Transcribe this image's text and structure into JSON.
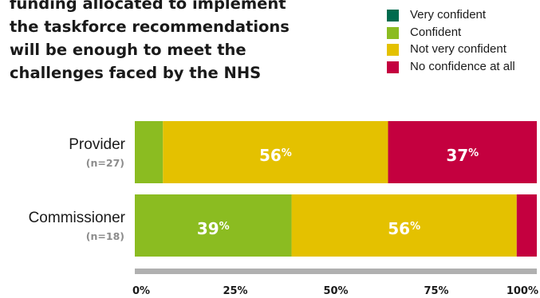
{
  "title_lines": [
    "funding allocated to implement",
    "the taskforce recommendations",
    "will be enough to meet the",
    "challenges faced by the NHS"
  ],
  "colors": {
    "very_confident": "#006b4e",
    "confident": "#8bbc21",
    "not_very_confident": "#e4c100",
    "no_confidence": "#c4003f",
    "axis_line": "#b0b0b0",
    "sublabel": "#8c8c8c"
  },
  "chart_data": {
    "type": "bar",
    "orientation": "horizontal",
    "stacked": true,
    "categories": [
      "Provider",
      "Commissioner"
    ],
    "category_sublabels": [
      "(n=27)",
      "(n=18)"
    ],
    "series": [
      {
        "name": "Very confident",
        "color_key": "very_confident",
        "values": [
          0,
          0
        ],
        "labels": [
          "",
          ""
        ]
      },
      {
        "name": "Confident",
        "color_key": "confident",
        "values": [
          7,
          39
        ],
        "labels": [
          "",
          "39"
        ]
      },
      {
        "name": "Not very confident",
        "color_key": "not_very_confident",
        "values": [
          56,
          56
        ],
        "labels": [
          "56",
          "56"
        ]
      },
      {
        "name": "No confidence at all",
        "color_key": "no_confidence",
        "values": [
          37,
          5
        ],
        "labels": [
          "37",
          ""
        ]
      }
    ],
    "percent_sign": "%",
    "xlim": [
      0,
      100
    ],
    "xticks": [
      0,
      25,
      50,
      75,
      100
    ],
    "xtick_labels": [
      "0%",
      "25%",
      "50%",
      "75%",
      "100%"
    ],
    "legend_position": "top-right",
    "grid": false
  }
}
